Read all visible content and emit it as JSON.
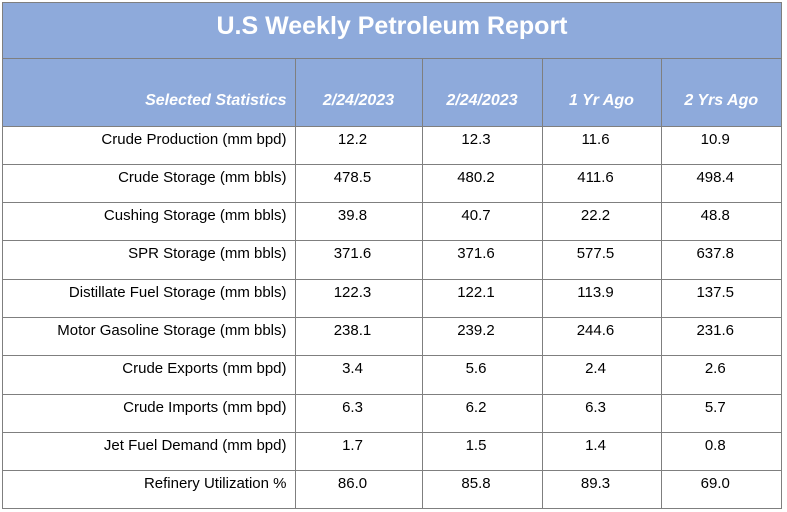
{
  "chart_data": {
    "type": "table",
    "title": "U.S Weekly Petroleum Report",
    "columns": [
      "Selected Statistics",
      "2/24/2023",
      "2/24/2023",
      "1 Yr Ago",
      "2 Yrs Ago"
    ],
    "rows": [
      {
        "label": "Crude Production (mm bpd)",
        "values": [
          "12.2",
          "12.3",
          "11.6",
          "10.9"
        ]
      },
      {
        "label": "Crude Storage (mm bbls)",
        "values": [
          "478.5",
          "480.2",
          "411.6",
          "498.4"
        ]
      },
      {
        "label": "Cushing Storage (mm bbls)",
        "values": [
          "39.8",
          "40.7",
          "22.2",
          "48.8"
        ]
      },
      {
        "label": "SPR Storage (mm bbls)",
        "values": [
          "371.6",
          "371.6",
          "577.5",
          "637.8"
        ]
      },
      {
        "label": "Distillate Fuel Storage (mm bbls)",
        "values": [
          "122.3",
          "122.1",
          "113.9",
          "137.5"
        ]
      },
      {
        "label": "Motor Gasoline Storage (mm bbls)",
        "values": [
          "238.1",
          "239.2",
          "244.6",
          "231.6"
        ]
      },
      {
        "label": "Crude Exports (mm bpd)",
        "values": [
          "3.4",
          "5.6",
          "2.4",
          "2.6"
        ]
      },
      {
        "label": "Crude Imports (mm bpd)",
        "values": [
          "6.3",
          "6.2",
          "6.3",
          "5.7"
        ]
      },
      {
        "label": "Jet Fuel Demand (mm bpd)",
        "values": [
          "1.7",
          "1.5",
          "1.4",
          "0.8"
        ]
      },
      {
        "label": "Refinery Utilization %",
        "values": [
          "86.0",
          "85.8",
          "89.3",
          "69.0"
        ]
      }
    ]
  },
  "colors": {
    "header_fill": "#8eaadb",
    "header_text": "#ffffff",
    "grid": "#7f7f7f"
  }
}
